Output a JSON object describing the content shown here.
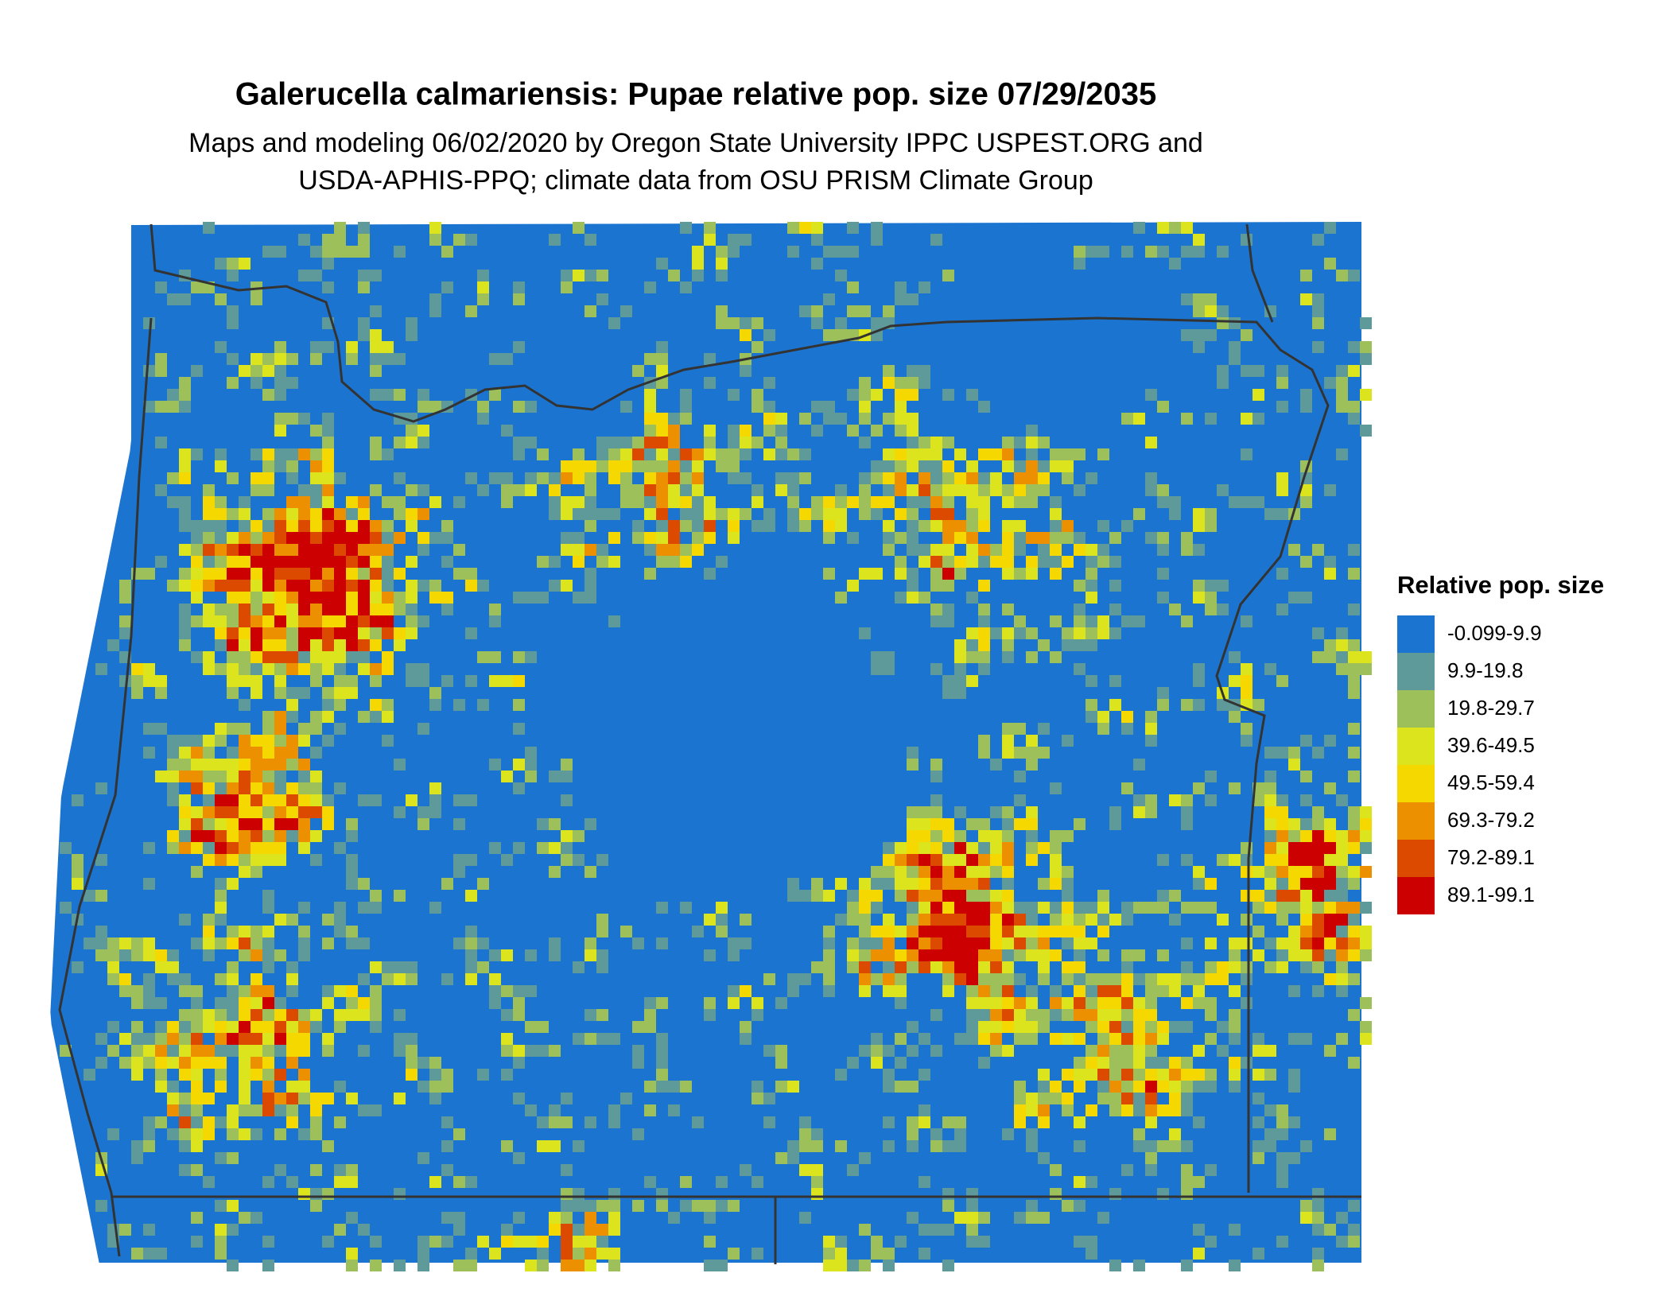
{
  "title": "Galerucella calmariensis: Pupae relative pop. size 07/29/2035",
  "subtitle": [
    "Maps and modeling 06/02/2020 by Oregon State University IPPC USPEST.ORG and",
    "USDA-APHIS-PPQ; climate data from OSU PRISM Climate Group"
  ],
  "legend": {
    "title": "Relative pop. size",
    "items": [
      {
        "label": "-0.099-9.9",
        "color": "#1b75d0"
      },
      {
        "label": "9.9-19.8",
        "color": "#5f9a9a"
      },
      {
        "label": "19.8-29.7",
        "color": "#9dc05a"
      },
      {
        "label": "39.6-49.5",
        "color": "#dbe41c"
      },
      {
        "label": "49.5-59.4",
        "color": "#f5d800"
      },
      {
        "label": "69.3-79.2",
        "color": "#ec9000"
      },
      {
        "label": "79.2-89.1",
        "color": "#dc4a00"
      },
      {
        "label": "89.1-99.1",
        "color": "#cc0000"
      }
    ]
  }
}
